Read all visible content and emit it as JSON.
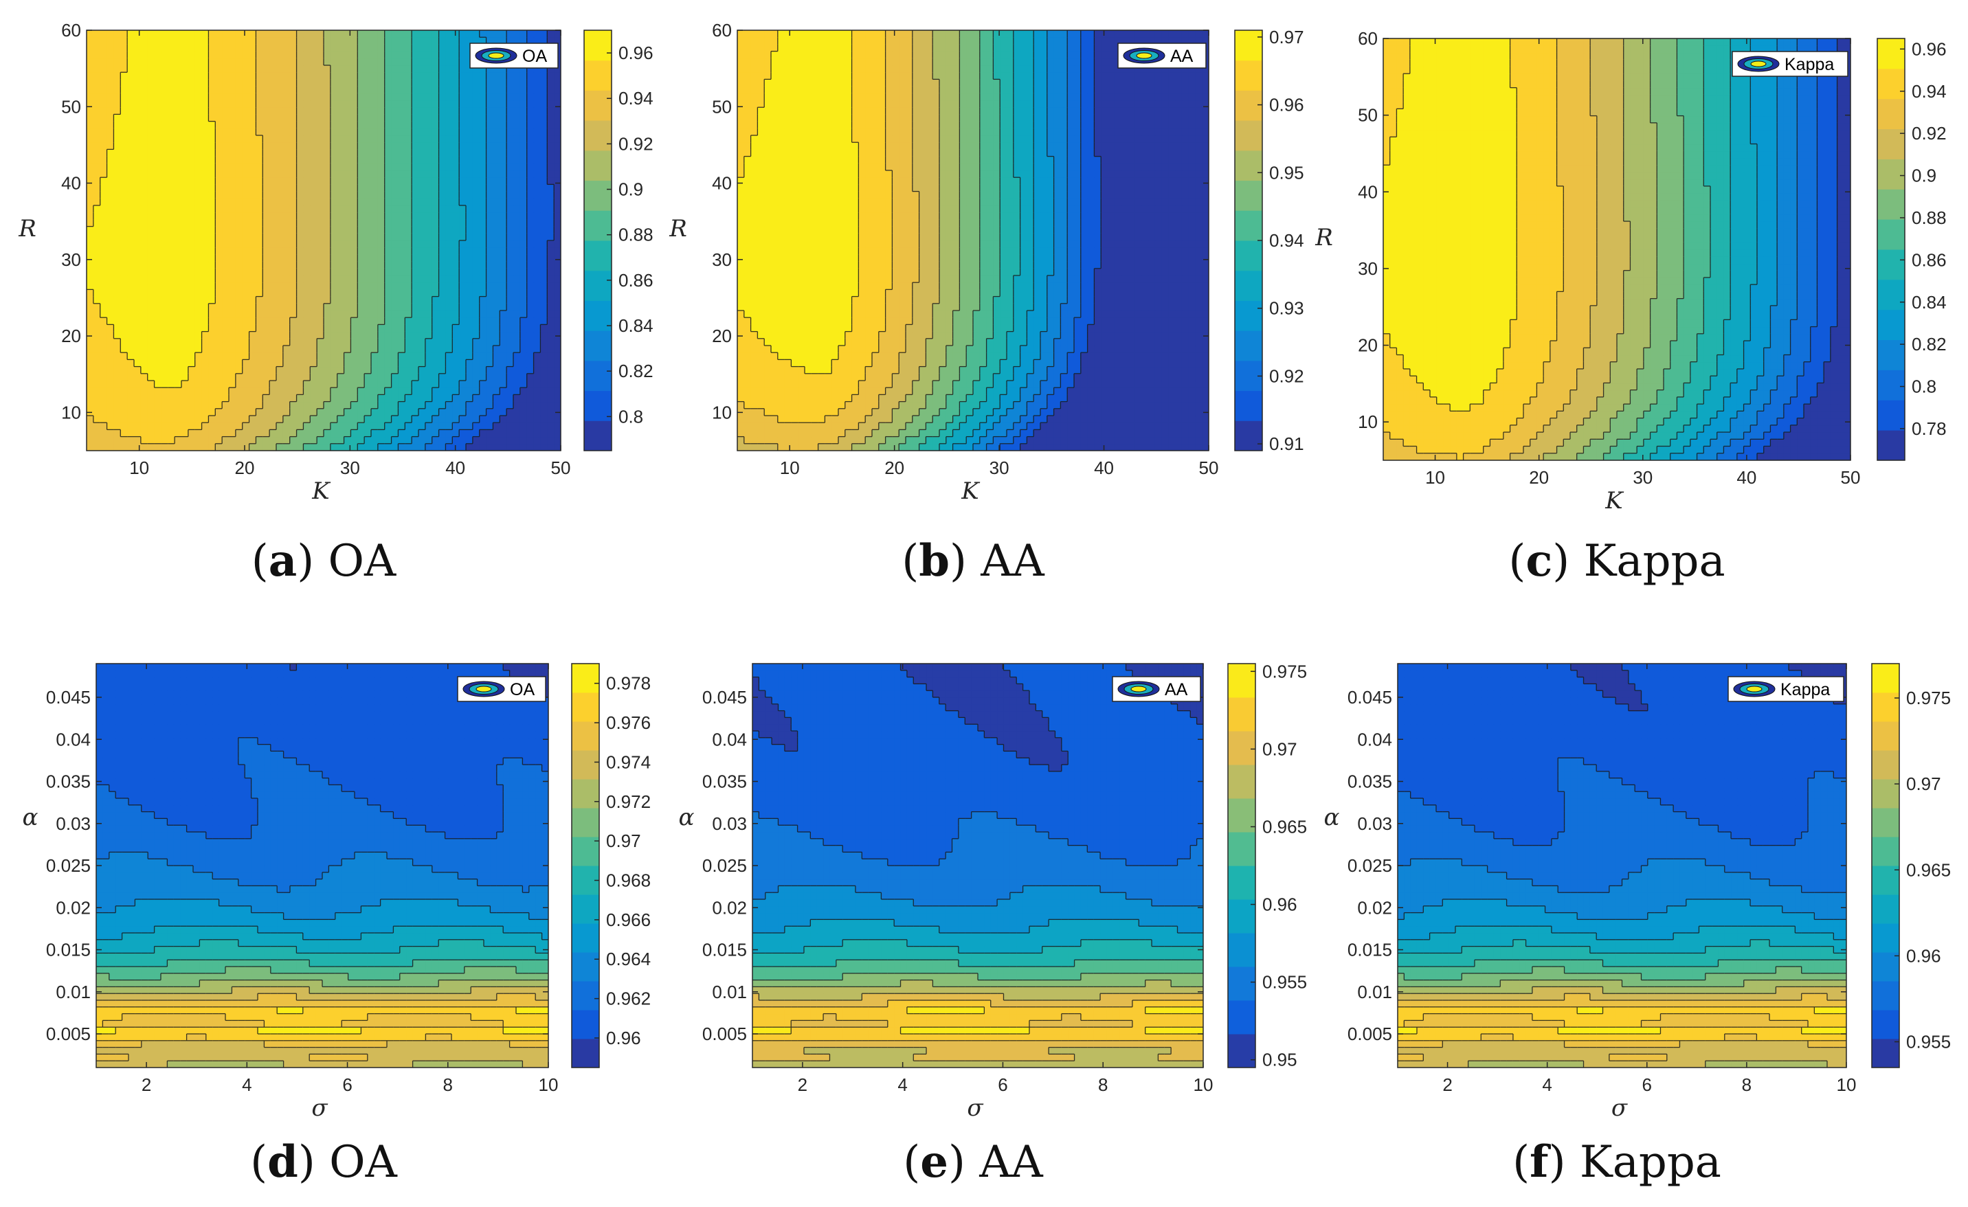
{
  "figure": {
    "captions": [
      {
        "letter": "a",
        "text": "OA"
      },
      {
        "letter": "b",
        "text": "AA"
      },
      {
        "letter": "c",
        "text": "Kappa"
      },
      {
        "letter": "d",
        "text": "OA"
      },
      {
        "letter": "e",
        "text": "AA"
      },
      {
        "letter": "f",
        "text": "Kappa"
      }
    ]
  },
  "chart_data": [
    {
      "id": "a",
      "type": "heatmap",
      "subtype": "filled-contour",
      "legend": "OA",
      "xlabel": "K",
      "ylabel": "R",
      "xlim": [
        5,
        50
      ],
      "ylim": [
        5,
        60
      ],
      "xticks": [
        10,
        20,
        30,
        40,
        50
      ],
      "xticklabels": [
        "10",
        "20",
        "30",
        "40",
        "50"
      ],
      "yticks": [
        10,
        20,
        30,
        40,
        50,
        60
      ],
      "yticklabels": [
        "10",
        "20",
        "30",
        "40",
        "50",
        "60"
      ],
      "clim": [
        0.785,
        0.97
      ],
      "cticks": [
        0.8,
        0.82,
        0.84,
        0.86,
        0.88,
        0.9,
        0.92,
        0.94,
        0.96
      ],
      "cticklabels": [
        "0.8",
        "0.82",
        "0.84",
        "0.86",
        "0.88",
        "0.9",
        "0.92",
        "0.94",
        "0.96"
      ],
      "levels": 14,
      "surface": {
        "kind": "oak",
        "peak": 0.965,
        "floor": 0.79,
        "curvature": 1.0
      },
      "grid": {
        "x": [
          5,
          10,
          15,
          20,
          25,
          30,
          35,
          40,
          45,
          50
        ],
        "y": [
          5,
          10,
          15,
          20,
          25,
          30,
          35,
          40,
          45,
          50,
          55,
          60
        ]
      }
    },
    {
      "id": "b",
      "type": "heatmap",
      "subtype": "filled-contour",
      "legend": "AA",
      "xlabel": "K",
      "ylabel": "R",
      "xlim": [
        5,
        50
      ],
      "ylim": [
        5,
        60
      ],
      "xticks": [
        10,
        20,
        30,
        40,
        50
      ],
      "xticklabels": [
        "10",
        "20",
        "30",
        "40",
        "50"
      ],
      "yticks": [
        10,
        20,
        30,
        40,
        50,
        60
      ],
      "yticklabels": [
        "10",
        "20",
        "30",
        "40",
        "50",
        "60"
      ],
      "clim": [
        0.909,
        0.971
      ],
      "cticks": [
        0.91,
        0.92,
        0.93,
        0.94,
        0.95,
        0.96,
        0.97
      ],
      "cticklabels": [
        "0.91",
        "0.92",
        "0.93",
        "0.94",
        "0.95",
        "0.96",
        "0.97"
      ],
      "levels": 14,
      "surface": {
        "kind": "oak",
        "peak": 0.97,
        "floor": 0.912,
        "curvature": 1.6
      },
      "grid": {
        "x": [
          5,
          10,
          15,
          20,
          25,
          30,
          35,
          40,
          45,
          50
        ],
        "y": [
          5,
          10,
          15,
          20,
          25,
          30,
          35,
          40,
          45,
          50,
          55,
          60
        ]
      }
    },
    {
      "id": "c",
      "type": "heatmap",
      "subtype": "filled-contour",
      "legend": "Kappa",
      "xlabel": "K",
      "ylabel": "R",
      "xlim": [
        5,
        50
      ],
      "ylim": [
        5,
        60
      ],
      "xticks": [
        10,
        20,
        30,
        40,
        50
      ],
      "xticklabels": [
        "10",
        "20",
        "30",
        "40",
        "50"
      ],
      "yticks": [
        10,
        20,
        30,
        40,
        50,
        60
      ],
      "yticklabels": [
        "10",
        "20",
        "30",
        "40",
        "50",
        "60"
      ],
      "clim": [
        0.765,
        0.965
      ],
      "cticks": [
        0.78,
        0.8,
        0.82,
        0.84,
        0.86,
        0.88,
        0.9,
        0.92,
        0.94,
        0.96
      ],
      "cticklabels": [
        "0.78",
        "0.8",
        "0.82",
        "0.84",
        "0.86",
        "0.88",
        "0.9",
        "0.92",
        "0.94",
        "0.96"
      ],
      "levels": 14,
      "surface": {
        "kind": "oak",
        "peak": 0.962,
        "floor": 0.77,
        "curvature": 1.0
      },
      "grid": {
        "x": [
          5,
          10,
          15,
          20,
          25,
          30,
          35,
          40,
          45,
          50
        ],
        "y": [
          5,
          10,
          15,
          20,
          25,
          30,
          35,
          40,
          45,
          50,
          55,
          60
        ]
      }
    },
    {
      "id": "d",
      "type": "heatmap",
      "subtype": "filled-contour",
      "legend": "OA",
      "xlabel": "σ",
      "ylabel": "α",
      "xlim": [
        1,
        10
      ],
      "ylim": [
        0.001,
        0.049
      ],
      "xticks": [
        2,
        4,
        6,
        8,
        10
      ],
      "xticklabels": [
        "2",
        "4",
        "6",
        "8",
        "10"
      ],
      "yticks": [
        0.005,
        0.01,
        0.015,
        0.02,
        0.025,
        0.03,
        0.035,
        0.04,
        0.045
      ],
      "yticklabels": [
        "0.005",
        "0.01",
        "0.015",
        "0.02",
        "0.025",
        "0.03",
        "0.035",
        "0.04",
        "0.045"
      ],
      "clim": [
        0.9585,
        0.979
      ],
      "cticks": [
        0.96,
        0.962,
        0.964,
        0.966,
        0.968,
        0.97,
        0.972,
        0.974,
        0.976,
        0.978
      ],
      "cticklabels": [
        "0.96",
        "0.962",
        "0.964",
        "0.966",
        "0.968",
        "0.97",
        "0.972",
        "0.974",
        "0.976",
        "0.978"
      ],
      "levels": 14,
      "surface": {
        "kind": "alpha",
        "peak": 0.979,
        "floor": 0.9595
      },
      "grid": {
        "x": [
          1,
          2,
          3,
          4,
          5,
          6,
          7,
          8,
          9,
          10
        ],
        "y": [
          0.001,
          0.005,
          0.01,
          0.015,
          0.02,
          0.025,
          0.03,
          0.035,
          0.04,
          0.045,
          0.049
        ]
      }
    },
    {
      "id": "e",
      "type": "heatmap",
      "subtype": "filled-contour",
      "legend": "AA",
      "xlabel": "σ",
      "ylabel": "α",
      "xlim": [
        1,
        10
      ],
      "ylim": [
        0.001,
        0.049
      ],
      "xticks": [
        2,
        4,
        6,
        8,
        10
      ],
      "xticklabels": [
        "2",
        "4",
        "6",
        "8",
        "10"
      ],
      "yticks": [
        0.005,
        0.01,
        0.015,
        0.02,
        0.025,
        0.03,
        0.035,
        0.04,
        0.045
      ],
      "yticklabels": [
        "0.005",
        "0.01",
        "0.015",
        "0.02",
        "0.025",
        "0.03",
        "0.035",
        "0.04",
        "0.045"
      ],
      "clim": [
        0.9495,
        0.9755
      ],
      "cticks": [
        0.95,
        0.955,
        0.96,
        0.965,
        0.97,
        0.975
      ],
      "cticklabels": [
        "0.95",
        "0.955",
        "0.96",
        "0.965",
        "0.97",
        "0.975"
      ],
      "levels": 12,
      "surface": {
        "kind": "alpha",
        "peak": 0.9755,
        "floor": 0.9505
      },
      "grid": {
        "x": [
          1,
          2,
          3,
          4,
          5,
          6,
          7,
          8,
          9,
          10
        ],
        "y": [
          0.001,
          0.005,
          0.01,
          0.015,
          0.02,
          0.025,
          0.03,
          0.035,
          0.04,
          0.045,
          0.049
        ]
      }
    },
    {
      "id": "f",
      "type": "heatmap",
      "subtype": "filled-contour",
      "legend": "Kappa",
      "xlabel": "σ",
      "ylabel": "α",
      "xlim": [
        1,
        10
      ],
      "ylim": [
        0.001,
        0.049
      ],
      "xticks": [
        2,
        4,
        6,
        8,
        10
      ],
      "xticklabels": [
        "2",
        "4",
        "6",
        "8",
        "10"
      ],
      "yticks": [
        0.005,
        0.01,
        0.015,
        0.02,
        0.025,
        0.03,
        0.035,
        0.04,
        0.045
      ],
      "yticklabels": [
        "0.005",
        "0.01",
        "0.015",
        "0.02",
        "0.025",
        "0.03",
        "0.035",
        "0.04",
        "0.045"
      ],
      "clim": [
        0.9535,
        0.977
      ],
      "cticks": [
        0.955,
        0.96,
        0.965,
        0.97,
        0.975
      ],
      "cticklabels": [
        "0.955",
        "0.96",
        "0.965",
        "0.97",
        "0.975"
      ],
      "levels": 14,
      "surface": {
        "kind": "alpha",
        "peak": 0.977,
        "floor": 0.9545
      },
      "grid": {
        "x": [
          1,
          2,
          3,
          4,
          5,
          6,
          7,
          8,
          9,
          10
        ],
        "y": [
          0.001,
          0.005,
          0.01,
          0.015,
          0.02,
          0.025,
          0.03,
          0.035,
          0.04,
          0.045,
          0.049
        ]
      }
    }
  ]
}
